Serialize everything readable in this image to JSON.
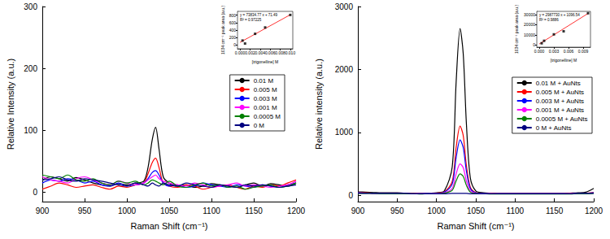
{
  "chart_data": [
    {
      "type": "line",
      "x_label": "Raman Shift (cm⁻¹)",
      "y_label": "Relative Intensity (a.u.)",
      "x": [
        900,
        910,
        920,
        930,
        940,
        950,
        960,
        970,
        980,
        990,
        1000,
        1010,
        1020,
        1025,
        1030,
        1034,
        1038,
        1043,
        1050,
        1060,
        1070,
        1080,
        1090,
        1100,
        1110,
        1120,
        1130,
        1140,
        1150,
        1160,
        1170,
        1180,
        1190,
        1200
      ],
      "xlim": [
        900,
        1200
      ],
      "xticks": [
        900,
        950,
        1000,
        1050,
        1100,
        1150,
        1200
      ],
      "ylim": [
        -15,
        300
      ],
      "yticks": [
        0,
        100,
        200,
        300
      ],
      "grid": false,
      "legend": "right",
      "line_style": "solid",
      "series": [
        {
          "name": "0.01 M",
          "color": "#000000",
          "values": [
            20,
            25,
            22,
            18,
            24,
            20,
            15,
            12,
            10,
            14,
            12,
            15,
            18,
            40,
            85,
            105,
            70,
            25,
            15,
            10,
            12,
            8,
            10,
            14,
            12,
            10,
            8,
            12,
            15,
            10,
            14,
            12,
            10,
            15
          ]
        },
        {
          "name": "0.005 M",
          "color": "#ff0000",
          "values": [
            5,
            10,
            15,
            12,
            8,
            10,
            12,
            8,
            5,
            10,
            8,
            12,
            15,
            30,
            48,
            55,
            40,
            15,
            10,
            8,
            12,
            10,
            5,
            8,
            10,
            12,
            8,
            5,
            10,
            8,
            12,
            10,
            15,
            20
          ]
        },
        {
          "name": "0.003 M",
          "color": "#0000ff",
          "values": [
            15,
            20,
            18,
            22,
            20,
            15,
            18,
            12,
            10,
            15,
            10,
            12,
            15,
            22,
            32,
            35,
            28,
            15,
            10,
            12,
            8,
            10,
            15,
            12,
            10,
            8,
            12,
            10,
            8,
            12,
            10,
            8,
            12,
            15
          ]
        },
        {
          "name": "0.001 M",
          "color": "#ff00ff",
          "values": [
            25,
            20,
            18,
            15,
            22,
            25,
            20,
            15,
            12,
            18,
            15,
            12,
            15,
            20,
            25,
            28,
            22,
            18,
            15,
            12,
            10,
            15,
            12,
            8,
            10,
            12,
            15,
            10,
            12,
            10,
            8,
            10,
            12,
            18
          ]
        },
        {
          "name": "0.0005 M",
          "color": "#008000",
          "values": [
            28,
            25,
            22,
            28,
            20,
            18,
            22,
            15,
            12,
            18,
            15,
            18,
            12,
            15,
            20,
            18,
            15,
            12,
            18,
            10,
            8,
            12,
            15,
            10,
            12,
            8,
            10,
            5,
            8,
            10,
            12,
            8,
            10,
            15
          ]
        },
        {
          "name": "0 M",
          "color": "#000080",
          "values": [
            20,
            22,
            25,
            20,
            18,
            22,
            20,
            18,
            15,
            12,
            10,
            15,
            12,
            10,
            15,
            12,
            10,
            15,
            12,
            10,
            15,
            12,
            10,
            8,
            12,
            10,
            8,
            12,
            10,
            12,
            10,
            8,
            10,
            12
          ]
        }
      ]
    },
    {
      "type": "line",
      "x_label": "Raman Shift (cm⁻¹)",
      "y_label": "Relative intensity (a.u.)",
      "x": [
        900,
        910,
        920,
        930,
        940,
        950,
        960,
        970,
        980,
        990,
        1000,
        1010,
        1020,
        1025,
        1030,
        1034,
        1038,
        1043,
        1050,
        1060,
        1070,
        1080,
        1090,
        1100,
        1110,
        1120,
        1130,
        1140,
        1150,
        1160,
        1170,
        1180,
        1190,
        1200
      ],
      "xlim": [
        900,
        1200
      ],
      "xticks": [
        900,
        950,
        1000,
        1050,
        1100,
        1150,
        1200
      ],
      "ylim": [
        -100,
        3000
      ],
      "yticks": [
        0,
        1000,
        2000,
        3000
      ],
      "grid": false,
      "legend": "right",
      "line_style": "solid",
      "series": [
        {
          "name": "0.01 M + AuNts",
          "color": "#000000",
          "values": [
            55,
            50,
            45,
            40,
            40,
            40,
            35,
            35,
            30,
            35,
            40,
            70,
            450,
            1800,
            2650,
            2250,
            1150,
            280,
            70,
            40,
            35,
            30,
            30,
            30,
            30,
            30,
            30,
            30,
            30,
            30,
            35,
            40,
            50,
            110
          ]
        },
        {
          "name": "0.005 M + AuNts",
          "color": "#ff0000",
          "values": [
            40,
            40,
            35,
            35,
            30,
            30,
            30,
            30,
            25,
            30,
            35,
            55,
            220,
            760,
            1100,
            950,
            480,
            130,
            45,
            30,
            30,
            25,
            25,
            25,
            25,
            25,
            25,
            25,
            25,
            25,
            30,
            30,
            35,
            45
          ]
        },
        {
          "name": "0.003 M + AuNts",
          "color": "#0000ff",
          "values": [
            40,
            35,
            35,
            30,
            30,
            30,
            30,
            25,
            25,
            30,
            30,
            50,
            180,
            600,
            880,
            760,
            390,
            110,
            40,
            30,
            25,
            25,
            25,
            25,
            25,
            25,
            25,
            25,
            25,
            25,
            25,
            30,
            30,
            40
          ]
        },
        {
          "name": "0.001 M + AuNts",
          "color": "#ff00ff",
          "values": [
            35,
            35,
            30,
            30,
            30,
            30,
            25,
            25,
            25,
            25,
            30,
            40,
            110,
            340,
            500,
            440,
            230,
            70,
            35,
            25,
            25,
            25,
            25,
            25,
            25,
            25,
            25,
            25,
            25,
            25,
            25,
            25,
            30,
            35
          ]
        },
        {
          "name": "0.0005 M + AuNts",
          "color": "#008000",
          "values": [
            30,
            30,
            30,
            25,
            25,
            25,
            25,
            25,
            20,
            25,
            25,
            35,
            80,
            230,
            340,
            300,
            160,
            50,
            30,
            25,
            20,
            20,
            20,
            20,
            20,
            20,
            20,
            20,
            20,
            20,
            20,
            25,
            25,
            30
          ]
        },
        {
          "name": "0 M + AuNts",
          "color": "#000080",
          "values": [
            35,
            35,
            30,
            30,
            30,
            30,
            30,
            25,
            25,
            25,
            25,
            25,
            30,
            30,
            30,
            30,
            30,
            25,
            25,
            25,
            25,
            25,
            25,
            25,
            25,
            25,
            25,
            25,
            25,
            25,
            25,
            30,
            30,
            35
          ]
        }
      ]
    },
    {
      "type": "scatter",
      "x_label": "[trigonelline] M",
      "y_label": "1034 cm⁻¹ peak area (a.u.)",
      "annotations": [
        "y = 73834.77 x + 71.49",
        "R² = 0.97225"
      ],
      "x": [
        0.0005,
        0.001,
        0.003,
        0.005,
        0.01
      ],
      "values": [
        120,
        40,
        300,
        470,
        805
      ],
      "color": "#000000",
      "marker": "square",
      "fit": {
        "x": [
          0,
          0.01
        ],
        "values": [
          71.49,
          809.84
        ],
        "color": "#ff0000"
      },
      "xlim": [
        -0.0005,
        0.0105
      ],
      "xticks": [
        {
          "value": 0,
          "label": "0.000"
        },
        {
          "value": 0.002,
          "label": "0.002"
        },
        {
          "value": 0.004,
          "label": "0.004"
        },
        {
          "value": 0.006,
          "label": "0.006"
        },
        {
          "value": 0.008,
          "label": "0.008"
        },
        {
          "value": 0.01,
          "label": "0.010"
        }
      ],
      "ylim": [
        -100,
        900
      ],
      "yticks": [
        0,
        200,
        400,
        600,
        800
      ],
      "grid": false
    },
    {
      "type": "scatter",
      "x_label": "[trigonelline] M",
      "y_label": "1034 cm⁻¹ peak area (a.u.)",
      "annotations": [
        "y = 2987730 x + 1096.54",
        "R² = 0.9886"
      ],
      "x": [
        0.0005,
        0.001,
        0.003,
        0.005,
        0.01
      ],
      "values": [
        1800,
        4200,
        10500,
        13500,
        31200
      ],
      "color": "#000000",
      "marker": "square",
      "fit": {
        "x": [
          0,
          0.01
        ],
        "values": [
          1096.54,
          30973.84
        ],
        "color": "#ff0000"
      },
      "xlim": [
        -0.0005,
        0.0105
      ],
      "xticks": [
        {
          "value": 0,
          "label": "0.000"
        },
        {
          "value": 0.003,
          "label": "0.003"
        },
        {
          "value": 0.006,
          "label": "0.006"
        },
        {
          "value": 0.009,
          "label": "0.009"
        }
      ],
      "ylim": [
        -2000,
        33000
      ],
      "yticks": [
        0,
        10000,
        20000,
        30000
      ],
      "grid": false
    }
  ]
}
